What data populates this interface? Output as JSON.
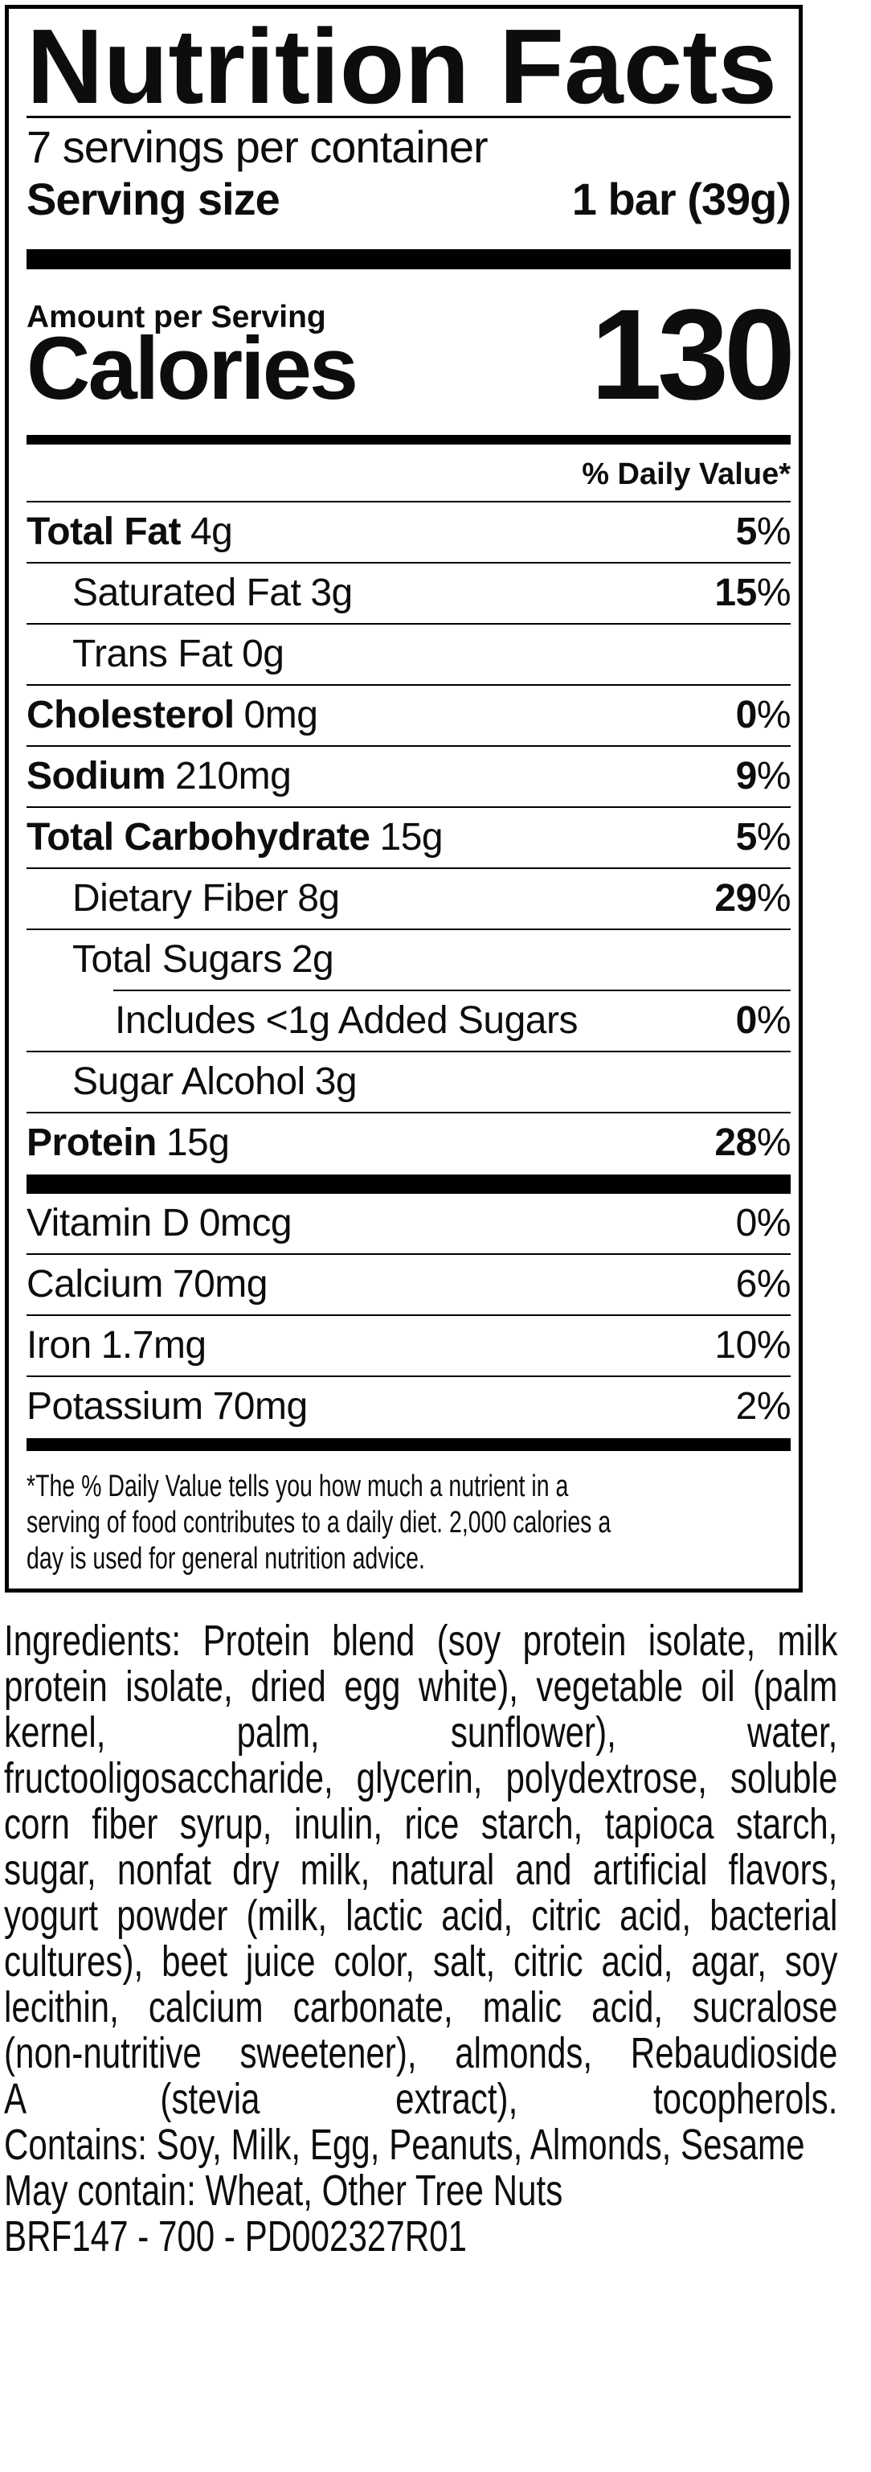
{
  "colors": {
    "text": "#0d0d0d",
    "background": "#ffffff",
    "rule": "#000000"
  },
  "label": {
    "title": "Nutrition Facts",
    "servings_per_container": "7 servings per container",
    "serving_size": {
      "label": "Serving size",
      "value": "1 bar (39g)"
    },
    "amount_per_serving": "Amount per Serving",
    "calories": {
      "label": "Calories",
      "value": "130"
    },
    "daily_value_header": "% Daily Value*",
    "rows": [
      {
        "name": "Total Fat",
        "amount": "4g",
        "dv": "5",
        "dv_pct": "%"
      },
      {
        "name": "Saturated Fat",
        "amount": "3g",
        "dv": "15",
        "dv_pct": "%"
      },
      {
        "name": "Trans Fat",
        "amount": "0g"
      },
      {
        "name": "Cholesterol",
        "amount": "0mg",
        "dv": "0",
        "dv_pct": "%"
      },
      {
        "name": "Sodium",
        "amount": "210mg",
        "dv": "9",
        "dv_pct": "%"
      },
      {
        "name": "Total Carbohydrate",
        "amount": "15g",
        "dv": "5",
        "dv_pct": "%"
      },
      {
        "name": "Dietary Fiber",
        "amount": "8g",
        "dv": "29",
        "dv_pct": "%"
      },
      {
        "name": "Total Sugars",
        "amount": "2g"
      },
      {
        "name": "Includes <1g Added Sugars",
        "dv": "0",
        "dv_pct": "%"
      },
      {
        "name": "Sugar Alcohol",
        "amount": "3g"
      },
      {
        "name": "Protein",
        "amount": "15g",
        "dv": "28",
        "dv_pct": "%"
      }
    ],
    "vitamins": [
      {
        "name": "Vitamin D",
        "amount": "0mcg",
        "dv": "0",
        "dv_pct": "%"
      },
      {
        "name": "Calcium",
        "amount": "70mg",
        "dv": "6",
        "dv_pct": "%"
      },
      {
        "name": "Iron",
        "amount": "1.7mg",
        "dv": "10",
        "dv_pct": "%"
      },
      {
        "name": "Potassium",
        "amount": "70mg",
        "dv": "2",
        "dv_pct": "%"
      }
    ],
    "footnote_lines": [
      "*The % Daily Value tells you how much a nutrient in a",
      "serving of food contributes to a daily diet. 2,000 calories a",
      "day is used for general nutrition advice."
    ]
  },
  "below": {
    "ingredients_lines": [
      "Ingredients: Protein blend (soy protein isolate, milk",
      "protein isolate, dried egg white), vegetable oil (palm",
      "kernel, palm, sunflower), water,",
      "fructooligosaccharide, glycerin, polydextrose, soluble",
      "corn fiber syrup, inulin, rice starch, tapioca starch,",
      "sugar, nonfat dry milk, natural and artificial flavors,",
      "yogurt powder (milk, lactic acid, citric acid, bacterial",
      "cultures), beet juice color, salt, citric acid, agar, soy",
      "lecithin, calcium carbonate, malic acid, sucralose",
      "(non-nutritive sweetener), almonds, Rebaudioside",
      "A (stevia extract), tocopherols."
    ],
    "ingredients_full": "Ingredients: Protein blend (soy protein isolate, milk protein isolate, dried egg white), vegetable oil (palm kernel, palm, sunflower), water, fructooligosaccharide, glycerin, polydextrose, soluble corn fiber syrup, inulin, rice starch, tapioca starch, sugar, nonfat dry milk, natural and artificial flavors, yogurt powder (milk, lactic acid, citric acid, bacterial cultures), beet juice color, salt, citric acid, agar, soy lecithin, calcium carbonate, malic acid, sucralose (non-nutritive sweetener), almonds, Rebaudioside A (stevia extract), tocopherols.",
    "contains": "Contains: Soy, Milk, Egg, Peanuts, Almonds, Sesame",
    "may_contain": "May contain: Wheat, Other Tree Nuts",
    "lot_code": "BRF147 - 700 - PD002327R01"
  }
}
